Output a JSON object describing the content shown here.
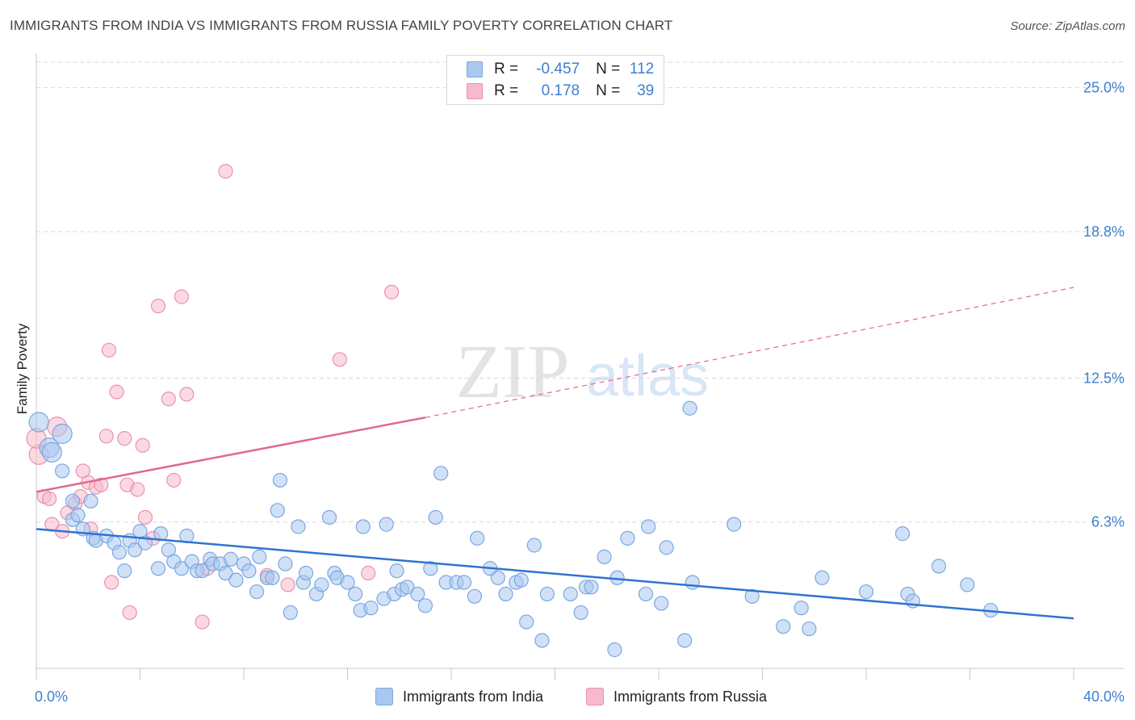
{
  "header": {
    "title": "IMMIGRANTS FROM INDIA VS IMMIGRANTS FROM RUSSIA FAMILY POVERTY CORRELATION CHART",
    "source": "Source: ZipAtlas.com"
  },
  "watermark": {
    "zip": "ZIP",
    "atlas": "atlas"
  },
  "legend_stats": {
    "india": {
      "r_label": "R =",
      "r_value": "-0.457",
      "n_label": "N =",
      "n_value": "112"
    },
    "russia": {
      "r_label": "R =",
      "r_value": "0.178",
      "n_label": "N =",
      "n_value": "39"
    }
  },
  "colors": {
    "india_fill": "#a9c8f0",
    "india_stroke": "#7aa7e0",
    "india_line": "#2f74d0",
    "russia_fill": "#f7b9cc",
    "russia_stroke": "#ec91ad",
    "russia_line": "#e0698f",
    "tick_label": "#3d7fcf",
    "grid": "#d8d8d8"
  },
  "chart_data": {
    "type": "scatter",
    "title": "IMMIGRANTS FROM INDIA VS IMMIGRANTS FROM RUSSIA FAMILY POVERTY CORRELATION CHART",
    "xlabel": "",
    "ylabel": "Family Poverty",
    "xlim": [
      0,
      40
    ],
    "ylim": [
      0,
      26.1
    ],
    "x_tick_labels": [
      "0.0%",
      "40.0%"
    ],
    "y_ticks": [
      6.3,
      12.5,
      18.8,
      25.0
    ],
    "y_tick_labels": [
      "6.3%",
      "12.5%",
      "18.8%",
      "25.0%"
    ],
    "legend_position": "bottom-center",
    "series": [
      {
        "name": "Immigrants from India",
        "r": -0.457,
        "n": 112,
        "trend": {
          "x": [
            0,
            40
          ],
          "y": [
            6.0,
            2.15
          ]
        },
        "points": [
          [
            0.1,
            10.6
          ],
          [
            0.5,
            9.5
          ],
          [
            0.6,
            9.3
          ],
          [
            1.0,
            8.5
          ],
          [
            1.0,
            10.1
          ],
          [
            1.4,
            6.4
          ],
          [
            1.4,
            7.2
          ],
          [
            1.6,
            6.6
          ],
          [
            1.8,
            6.0
          ],
          [
            2.1,
            7.2
          ],
          [
            2.2,
            5.6
          ],
          [
            2.3,
            5.5
          ],
          [
            2.7,
            5.7
          ],
          [
            3.0,
            5.4
          ],
          [
            3.2,
            5.0
          ],
          [
            3.4,
            4.2
          ],
          [
            3.6,
            5.5
          ],
          [
            3.8,
            5.1
          ],
          [
            4.0,
            5.9
          ],
          [
            4.2,
            5.4
          ],
          [
            4.7,
            4.3
          ],
          [
            4.8,
            5.8
          ],
          [
            5.1,
            5.1
          ],
          [
            5.3,
            4.6
          ],
          [
            5.6,
            4.3
          ],
          [
            5.8,
            5.7
          ],
          [
            6.0,
            4.6
          ],
          [
            6.2,
            4.2
          ],
          [
            6.4,
            4.2
          ],
          [
            6.7,
            4.7
          ],
          [
            6.8,
            4.5
          ],
          [
            7.1,
            4.5
          ],
          [
            7.3,
            4.1
          ],
          [
            7.5,
            4.7
          ],
          [
            7.7,
            3.8
          ],
          [
            8.0,
            4.5
          ],
          [
            8.2,
            4.2
          ],
          [
            8.5,
            3.3
          ],
          [
            8.6,
            4.8
          ],
          [
            8.9,
            3.9
          ],
          [
            9.1,
            3.9
          ],
          [
            9.3,
            6.8
          ],
          [
            9.4,
            8.1
          ],
          [
            9.6,
            4.5
          ],
          [
            9.8,
            2.4
          ],
          [
            10.1,
            6.1
          ],
          [
            10.3,
            3.7
          ],
          [
            10.4,
            4.1
          ],
          [
            10.8,
            3.2
          ],
          [
            11.0,
            3.6
          ],
          [
            11.3,
            6.5
          ],
          [
            11.5,
            4.1
          ],
          [
            11.6,
            3.9
          ],
          [
            12.0,
            3.7
          ],
          [
            12.3,
            3.2
          ],
          [
            12.5,
            2.5
          ],
          [
            12.6,
            6.1
          ],
          [
            12.9,
            2.6
          ],
          [
            13.4,
            3.0
          ],
          [
            13.5,
            6.2
          ],
          [
            13.8,
            3.2
          ],
          [
            13.9,
            4.2
          ],
          [
            14.1,
            3.4
          ],
          [
            14.3,
            3.5
          ],
          [
            14.7,
            3.2
          ],
          [
            15.0,
            2.7
          ],
          [
            15.2,
            4.3
          ],
          [
            15.4,
            6.5
          ],
          [
            15.6,
            8.4
          ],
          [
            15.8,
            3.7
          ],
          [
            16.2,
            3.7
          ],
          [
            16.5,
            3.7
          ],
          [
            16.9,
            3.1
          ],
          [
            17.0,
            5.6
          ],
          [
            17.5,
            4.3
          ],
          [
            17.8,
            3.9
          ],
          [
            18.1,
            3.2
          ],
          [
            18.5,
            3.7
          ],
          [
            18.7,
            3.8
          ],
          [
            18.9,
            2.0
          ],
          [
            19.2,
            5.3
          ],
          [
            19.5,
            1.2
          ],
          [
            19.7,
            3.2
          ],
          [
            20.6,
            3.2
          ],
          [
            21.0,
            2.4
          ],
          [
            21.2,
            3.5
          ],
          [
            21.4,
            3.5
          ],
          [
            21.9,
            4.8
          ],
          [
            22.3,
            0.8
          ],
          [
            22.4,
            3.9
          ],
          [
            22.8,
            5.6
          ],
          [
            23.5,
            3.2
          ],
          [
            23.6,
            6.1
          ],
          [
            24.1,
            2.8
          ],
          [
            24.3,
            5.2
          ],
          [
            25.0,
            1.2
          ],
          [
            25.2,
            11.2
          ],
          [
            25.3,
            3.7
          ],
          [
            26.9,
            6.2
          ],
          [
            27.6,
            3.1
          ],
          [
            28.8,
            1.8
          ],
          [
            29.5,
            2.6
          ],
          [
            29.8,
            1.7
          ],
          [
            30.3,
            3.9
          ],
          [
            32.0,
            3.3
          ],
          [
            33.4,
            5.8
          ],
          [
            33.6,
            3.2
          ],
          [
            33.8,
            2.9
          ],
          [
            34.8,
            4.4
          ],
          [
            35.9,
            3.6
          ],
          [
            36.8,
            2.5
          ]
        ]
      },
      {
        "name": "Immigrants from Russia",
        "r": 0.178,
        "n": 39,
        "trend": {
          "x": [
            0,
            15
          ],
          "y": [
            7.6,
            10.8
          ]
        },
        "trend_extended": {
          "x": [
            15,
            40
          ],
          "y": [
            10.8,
            16.4
          ]
        },
        "points": [
          [
            0.1,
            9.2
          ],
          [
            0.3,
            7.4
          ],
          [
            0.5,
            7.3
          ],
          [
            0.6,
            6.2
          ],
          [
            0.8,
            10.4
          ],
          [
            1.0,
            5.9
          ],
          [
            1.2,
            6.7
          ],
          [
            1.5,
            7.1
          ],
          [
            1.7,
            7.4
          ],
          [
            1.8,
            8.5
          ],
          [
            2.0,
            8.0
          ],
          [
            2.1,
            6.0
          ],
          [
            2.3,
            7.8
          ],
          [
            2.5,
            7.9
          ],
          [
            2.7,
            10.0
          ],
          [
            2.8,
            13.7
          ],
          [
            2.9,
            3.7
          ],
          [
            3.1,
            11.9
          ],
          [
            3.4,
            9.9
          ],
          [
            3.5,
            7.9
          ],
          [
            3.6,
            2.4
          ],
          [
            3.9,
            7.7
          ],
          [
            4.1,
            9.6
          ],
          [
            4.2,
            6.5
          ],
          [
            4.5,
            5.6
          ],
          [
            4.7,
            15.6
          ],
          [
            5.1,
            11.6
          ],
          [
            5.3,
            8.1
          ],
          [
            5.6,
            16.0
          ],
          [
            5.8,
            11.8
          ],
          [
            6.4,
            2.0
          ],
          [
            6.6,
            4.3
          ],
          [
            7.3,
            21.4
          ],
          [
            8.9,
            4.0
          ],
          [
            9.7,
            3.6
          ],
          [
            11.7,
            13.3
          ],
          [
            12.8,
            4.1
          ],
          [
            13.7,
            16.2
          ],
          [
            0.0,
            9.9
          ]
        ]
      }
    ]
  },
  "legend_bottom": {
    "india_label": "Immigrants from India",
    "russia_label": "Immigrants from Russia"
  }
}
